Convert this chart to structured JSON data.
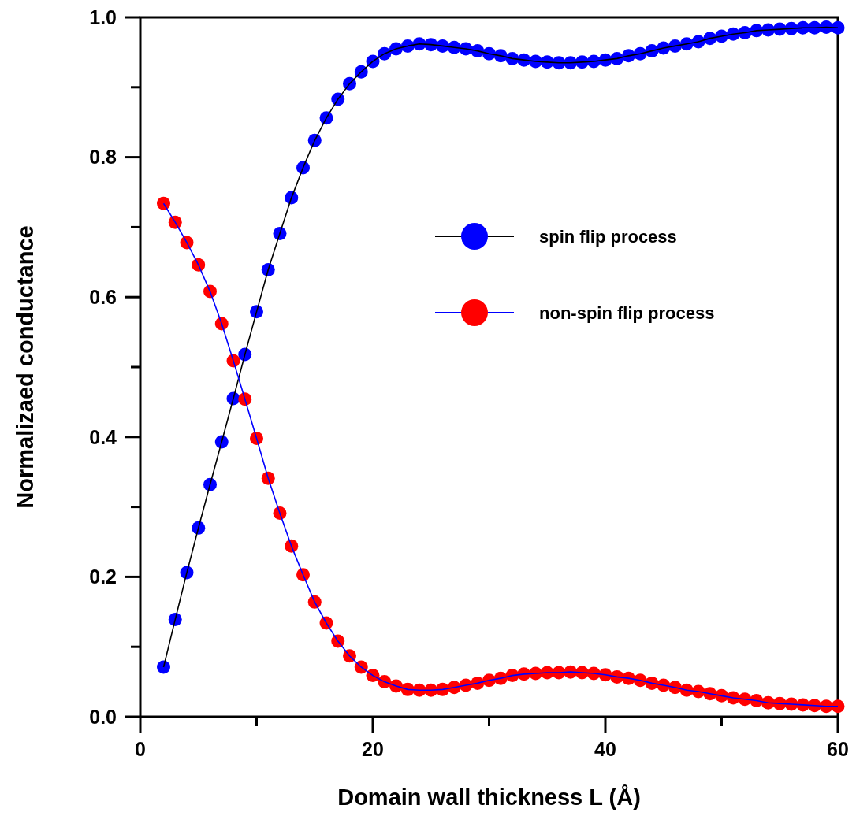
{
  "chart_data": {
    "type": "line",
    "xlabel": "Domain wall thickness L (Å)",
    "ylabel": "Normalizaed conductance",
    "x": [
      2,
      3,
      4,
      5,
      6,
      7,
      8,
      9,
      10,
      11,
      12,
      13,
      14,
      15,
      16,
      17,
      18,
      19,
      20,
      21,
      22,
      23,
      24,
      25,
      26,
      27,
      28,
      29,
      30,
      31,
      32,
      33,
      34,
      35,
      36,
      37,
      38,
      39,
      40,
      41,
      42,
      43,
      44,
      45,
      46,
      47,
      48,
      49,
      50,
      51,
      52,
      53,
      54,
      55,
      56,
      57,
      58,
      59,
      60
    ],
    "series": [
      {
        "name": "spin flip process",
        "color": "#0000ff",
        "values": [
          0.071,
          0.139,
          0.206,
          0.27,
          0.332,
          0.393,
          0.455,
          0.518,
          0.579,
          0.639,
          0.691,
          0.742,
          0.785,
          0.824,
          0.856,
          0.883,
          0.905,
          0.922,
          0.937,
          0.948,
          0.955,
          0.959,
          0.962,
          0.961,
          0.959,
          0.957,
          0.955,
          0.952,
          0.948,
          0.945,
          0.941,
          0.939,
          0.937,
          0.936,
          0.935,
          0.935,
          0.936,
          0.937,
          0.939,
          0.941,
          0.945,
          0.948,
          0.952,
          0.956,
          0.959,
          0.962,
          0.965,
          0.97,
          0.973,
          0.976,
          0.978,
          0.981,
          0.982,
          0.983,
          0.984,
          0.985,
          0.985,
          0.986,
          0.985
        ]
      },
      {
        "name": "non-spin flip process",
        "color": "#ff0000",
        "values": [
          0.734,
          0.707,
          0.678,
          0.646,
          0.608,
          0.562,
          0.509,
          0.454,
          0.398,
          0.341,
          0.291,
          0.244,
          0.203,
          0.164,
          0.134,
          0.108,
          0.087,
          0.071,
          0.059,
          0.05,
          0.044,
          0.039,
          0.038,
          0.038,
          0.039,
          0.042,
          0.045,
          0.048,
          0.052,
          0.055,
          0.059,
          0.061,
          0.062,
          0.063,
          0.063,
          0.064,
          0.063,
          0.062,
          0.06,
          0.057,
          0.055,
          0.052,
          0.048,
          0.045,
          0.042,
          0.038,
          0.036,
          0.033,
          0.03,
          0.027,
          0.025,
          0.023,
          0.02,
          0.019,
          0.018,
          0.017,
          0.016,
          0.015,
          0.015
        ]
      }
    ],
    "xlim": [
      0,
      60
    ],
    "xticks": [
      0,
      {
        "value": 10,
        "label": null
      },
      20,
      {
        "value": 30,
        "label": null
      },
      40,
      {
        "value": 50,
        "label": null
      },
      60
    ],
    "ylim": [
      0,
      1
    ],
    "yticks": [
      {
        "value": 0,
        "label": "0.0"
      },
      {
        "value": 0.1,
        "label": null
      },
      {
        "value": 0.2,
        "label": "0.2"
      },
      {
        "value": 0.3,
        "label": null
      },
      {
        "value": 0.4,
        "label": "0.4"
      },
      {
        "value": 0.5,
        "label": null
      },
      {
        "value": 0.6,
        "label": "0.6"
      },
      {
        "value": 0.7,
        "label": null
      },
      {
        "value": 0.8,
        "label": "0.8"
      },
      {
        "value": 0.9,
        "label": null
      },
      {
        "value": 1,
        "label": "1.0"
      }
    ],
    "grid": false,
    "legend": "right",
    "marker": "circle",
    "line_style": "solid"
  }
}
